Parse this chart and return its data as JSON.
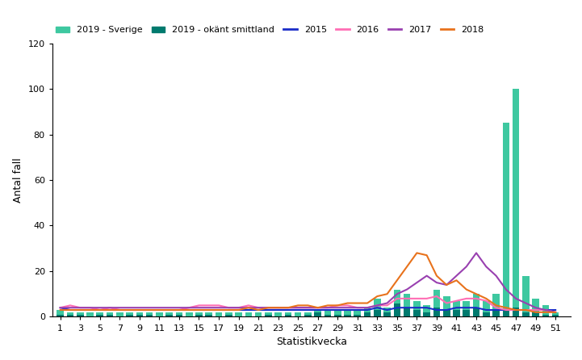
{
  "weeks": [
    1,
    2,
    3,
    4,
    5,
    6,
    7,
    8,
    9,
    10,
    11,
    12,
    13,
    14,
    15,
    16,
    17,
    18,
    19,
    20,
    21,
    22,
    23,
    24,
    25,
    26,
    27,
    28,
    29,
    30,
    31,
    32,
    33,
    34,
    35,
    36,
    37,
    38,
    39,
    40,
    41,
    42,
    43,
    44,
    45,
    46,
    47,
    48,
    49,
    50,
    51
  ],
  "serie_2019_sverige": [
    3,
    2,
    2,
    2,
    2,
    2,
    2,
    2,
    2,
    2,
    2,
    2,
    2,
    2,
    2,
    2,
    2,
    2,
    2,
    2,
    2,
    2,
    2,
    2,
    2,
    2,
    3,
    3,
    3,
    3,
    3,
    4,
    8,
    4,
    12,
    10,
    7,
    5,
    12,
    9,
    7,
    7,
    10,
    7,
    10,
    85,
    100,
    18,
    8,
    5,
    2
  ],
  "serie_2019_okant": [
    1,
    1,
    1,
    0,
    1,
    1,
    0,
    1,
    1,
    1,
    0,
    1,
    1,
    0,
    1,
    1,
    0,
    1,
    0,
    0,
    0,
    1,
    0,
    1,
    0,
    1,
    2,
    1,
    1,
    1,
    1,
    2,
    3,
    2,
    6,
    4,
    3,
    2,
    4,
    3,
    3,
    3,
    4,
    2,
    3,
    3,
    4,
    2,
    2,
    1,
    1
  ],
  "serie_2015": [
    4,
    3,
    3,
    3,
    3,
    3,
    3,
    3,
    3,
    3,
    3,
    3,
    3,
    3,
    3,
    3,
    3,
    3,
    3,
    3,
    3,
    3,
    3,
    3,
    3,
    3,
    3,
    3,
    3,
    3,
    3,
    3,
    4,
    3,
    4,
    4,
    4,
    4,
    3,
    3,
    4,
    4,
    4,
    3,
    3,
    3,
    3,
    3,
    3,
    3,
    3
  ],
  "serie_2016": [
    4,
    5,
    4,
    4,
    3,
    4,
    3,
    3,
    3,
    3,
    3,
    3,
    3,
    4,
    5,
    5,
    5,
    4,
    4,
    5,
    4,
    4,
    4,
    4,
    4,
    4,
    4,
    4,
    5,
    5,
    4,
    4,
    5,
    5,
    8,
    8,
    8,
    8,
    9,
    6,
    7,
    8,
    8,
    7,
    4,
    3,
    3,
    3,
    3,
    3,
    2
  ],
  "serie_2017": [
    4,
    4,
    4,
    4,
    4,
    4,
    4,
    4,
    4,
    4,
    4,
    4,
    4,
    4,
    4,
    4,
    4,
    4,
    4,
    4,
    4,
    4,
    4,
    4,
    4,
    4,
    4,
    4,
    4,
    4,
    4,
    4,
    5,
    6,
    10,
    12,
    15,
    18,
    15,
    14,
    18,
    22,
    28,
    22,
    18,
    12,
    8,
    6,
    4,
    3,
    2
  ],
  "serie_2018": [
    3,
    3,
    3,
    3,
    3,
    3,
    3,
    3,
    3,
    3,
    3,
    3,
    3,
    3,
    3,
    3,
    3,
    3,
    3,
    4,
    3,
    4,
    4,
    4,
    5,
    5,
    4,
    5,
    5,
    6,
    6,
    6,
    9,
    10,
    16,
    22,
    28,
    27,
    18,
    14,
    16,
    12,
    10,
    8,
    5,
    4,
    3,
    3,
    2,
    2,
    2
  ],
  "color_sverige": "#3EC8A0",
  "color_okant": "#007A6E",
  "color_2015": "#1A2CC8",
  "color_2016": "#FF6EB4",
  "color_2017": "#9940B0",
  "color_2018": "#E8721C",
  "ylabel": "Antal fall",
  "xlabel": "Statistikvecka",
  "ylim": [
    0,
    120
  ],
  "yticks": [
    0,
    20,
    40,
    60,
    80,
    100,
    120
  ],
  "legend_2019_sverige": "2019 - Sverige",
  "legend_2019_okant": "2019 - okänt smittland",
  "legend_2015": "2015",
  "legend_2016": "2016",
  "legend_2017": "2017",
  "legend_2018": "2018"
}
